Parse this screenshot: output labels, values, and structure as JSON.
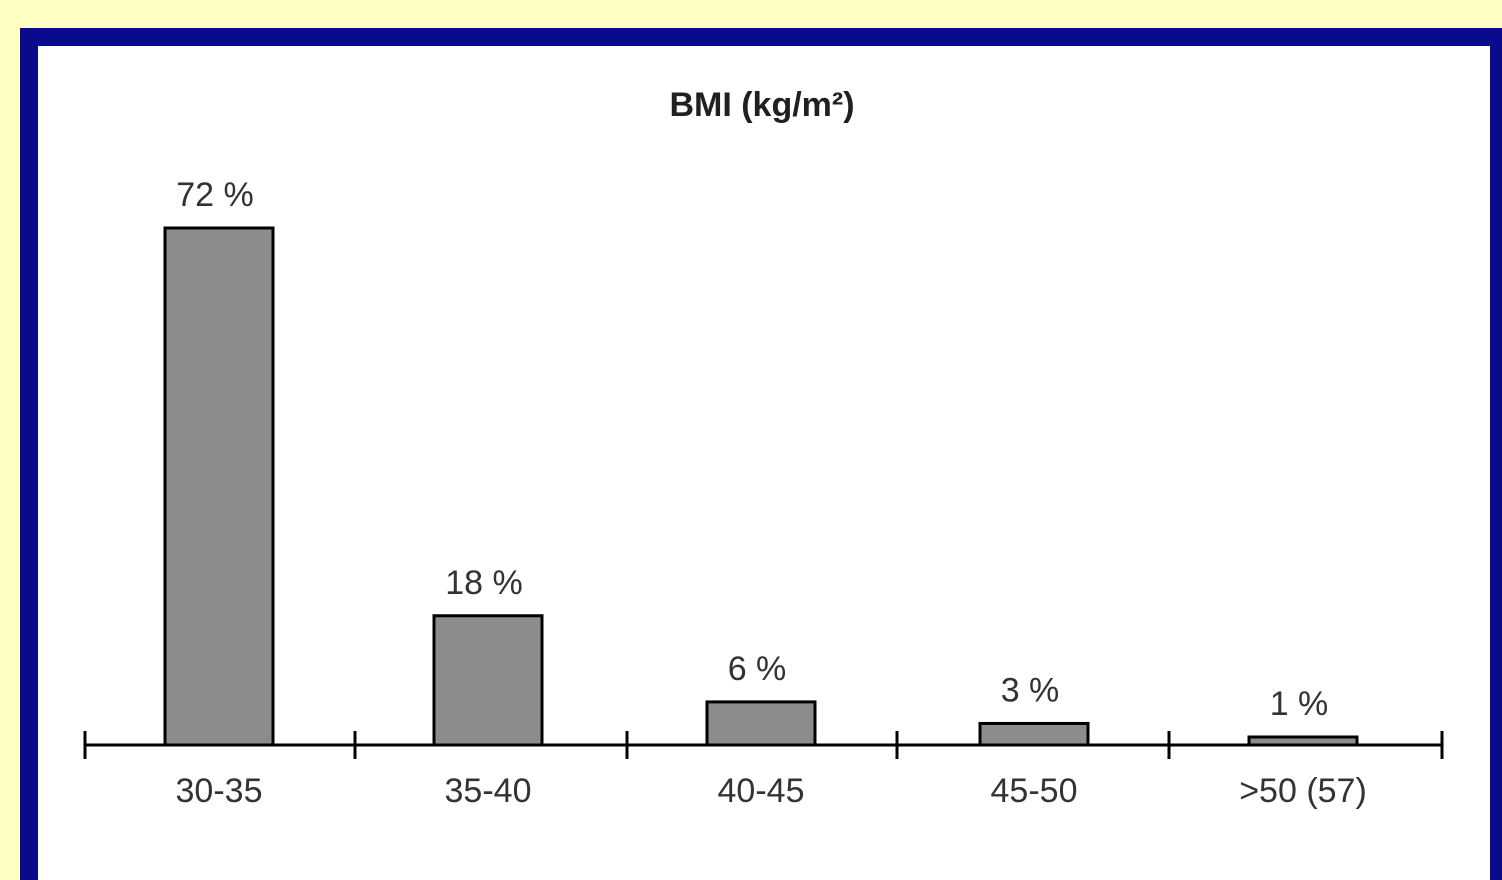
{
  "colors": {
    "page_background": "#ffffc4",
    "frame": "#0a0a8c",
    "panel": "#ffffff",
    "bar_fill": "#8c8c8c",
    "bar_stroke": "#000000",
    "axis": "#000000"
  },
  "chart_data": {
    "type": "bar",
    "title": "BMI (kg/m²)",
    "xlabel": "",
    "ylabel": "",
    "categories": [
      "30-35",
      "35-40",
      "40-45",
      "45-50",
      ">50 (57)"
    ],
    "values": [
      72,
      18,
      6,
      3,
      1
    ],
    "value_labels": [
      "72 %",
      "18 %",
      "6 %",
      "3 %",
      "1 %"
    ],
    "value_unit": "%",
    "ylim": [
      0,
      72
    ],
    "grid": false,
    "legend": "none",
    "y_axis_visible": false
  }
}
